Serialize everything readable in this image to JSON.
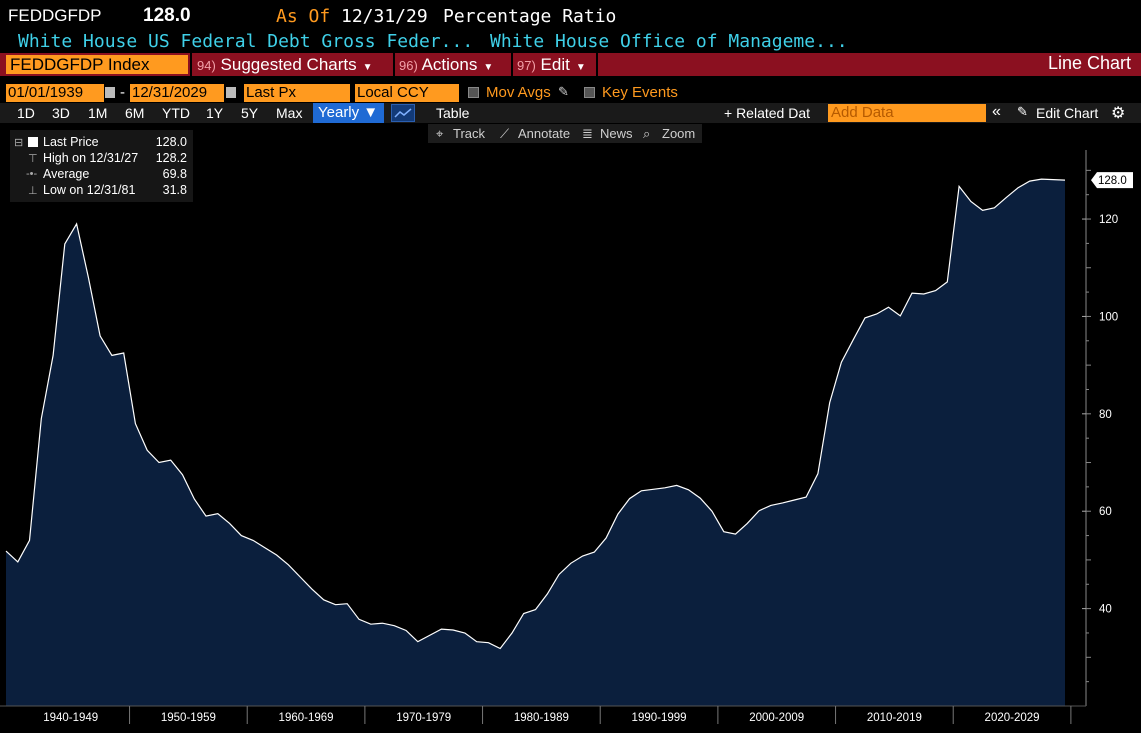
{
  "header": {
    "ticker": "FEDDGFDP",
    "last_value": "128.0",
    "as_of_label": "As Of",
    "as_of_date": "12/31/29",
    "unit": "Percentage Ratio",
    "desc_left": "White House US Federal Debt Gross Feder...",
    "desc_right": "White House Office of Manageme..."
  },
  "menubar": {
    "index_field": "FEDDGFDP Index",
    "items": [
      {
        "num": "94)",
        "label": "Suggested Charts"
      },
      {
        "num": "96)",
        "label": "Actions"
      },
      {
        "num": "97)",
        "label": "Edit"
      }
    ],
    "chart_type": "Line Chart"
  },
  "controls": {
    "start_date": "01/01/1939",
    "dash": "-",
    "end_date": "12/31/2029",
    "field": "Last Px",
    "currency": "Local CCY",
    "mov_avgs": "Mov Avgs",
    "key_events": "Key Events"
  },
  "rangebar": {
    "ranges": [
      "1D",
      "3D",
      "1M",
      "6M",
      "YTD",
      "1Y",
      "5Y",
      "Max"
    ],
    "period": "Yearly ▼",
    "table": "Table",
    "related": "+ Related Dat",
    "add_data_placeholder": "Add Data",
    "collapse": "«",
    "edit_chart": "Edit Chart"
  },
  "tools": [
    "Track",
    "Annotate",
    "News",
    "Zoom"
  ],
  "legend": {
    "rows": [
      {
        "label": "Last Price",
        "value": "128.0"
      },
      {
        "label": "High on 12/31/27",
        "value": "128.2"
      },
      {
        "label": "Average",
        "value": "69.8"
      },
      {
        "label": "Low on 12/31/81",
        "value": "31.8"
      }
    ]
  },
  "colors": {
    "background": "#000000",
    "area_fill": "#0b1f3d",
    "line": "#ffffff",
    "orange": "#ff9a1f",
    "cyan": "#3fd0e8",
    "menubar": "#8b1020"
  },
  "chart_data": {
    "type": "area",
    "title": "",
    "xlabel": "",
    "ylabel": "",
    "last_label": "128.0",
    "ylim": [
      20,
      135
    ],
    "yticks": [
      40,
      60,
      80,
      100,
      120
    ],
    "xlim": [
      1939,
      2030
    ],
    "decade_labels": [
      "1940-1949",
      "1950-1959",
      "1960-1969",
      "1970-1979",
      "1980-1989",
      "1990-1999",
      "2000-2009",
      "2010-2019",
      "2020-2029"
    ],
    "grid": false,
    "series": [
      {
        "x": [
          1939,
          1940,
          1941,
          1942,
          1943,
          1944,
          1945,
          1946,
          1947,
          1948,
          1949,
          1950,
          1951,
          1952,
          1953,
          1954,
          1955,
          1956,
          1957,
          1958,
          1959,
          1960,
          1961,
          1962,
          1963,
          1964,
          1965,
          1966,
          1967,
          1968,
          1969,
          1970,
          1971,
          1972,
          1973,
          1974,
          1975,
          1976,
          1977,
          1978,
          1979,
          1980,
          1981,
          1982,
          1983,
          1984,
          1985,
          1986,
          1987,
          1988,
          1989,
          1990,
          1991,
          1992,
          1993,
          1994,
          1995,
          1996,
          1997,
          1998,
          1999,
          2000,
          2001,
          2002,
          2003,
          2004,
          2005,
          2006,
          2007,
          2008,
          2009,
          2010,
          2011,
          2012,
          2013,
          2014,
          2015,
          2016,
          2017,
          2018,
          2019,
          2020,
          2021,
          2022,
          2023,
          2024,
          2025,
          2026,
          2027,
          2028,
          2029
        ],
        "y": [
          51.8,
          49.6,
          54.0,
          79.0,
          92.0,
          114.9,
          119.0,
          108.0,
          96.0,
          92.0,
          92.5,
          78.0,
          72.5,
          70.0,
          70.5,
          67.5,
          62.5,
          59.0,
          59.5,
          57.5,
          55.0,
          54.0,
          52.5,
          51.0,
          49.0,
          46.5,
          44.0,
          41.8,
          40.8,
          41.0,
          37.8,
          36.8,
          37.0,
          36.5,
          35.5,
          33.2,
          34.5,
          35.8,
          35.6,
          35.0,
          33.2,
          33.0,
          31.8,
          35.0,
          39.0,
          39.8,
          43.0,
          47.0,
          49.3,
          50.8,
          51.6,
          54.5,
          59.4,
          62.6,
          64.2,
          64.5,
          64.8,
          65.3,
          64.4,
          62.7,
          60.0,
          55.8,
          55.3,
          57.5,
          60.1,
          61.2,
          61.7,
          62.3,
          62.9,
          67.7,
          82.3,
          90.6,
          95.2,
          99.7,
          100.5,
          101.9,
          100.1,
          104.8,
          104.6,
          105.3,
          107.1,
          126.7,
          123.6,
          121.8,
          122.3,
          124.4,
          126.4,
          127.8,
          128.2,
          128.1,
          128.0
        ]
      }
    ]
  }
}
